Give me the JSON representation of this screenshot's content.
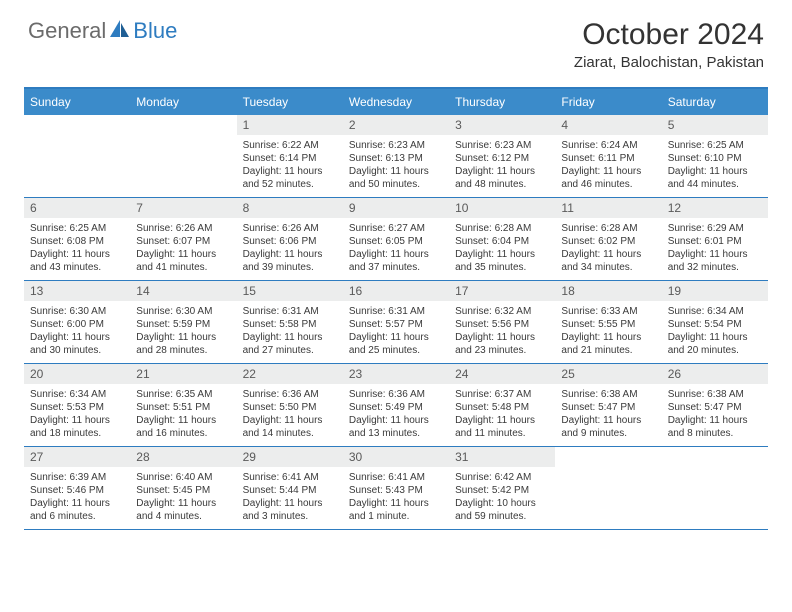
{
  "brand": {
    "part1": "General",
    "part2": "Blue"
  },
  "title": "October 2024",
  "location": "Ziarat, Balochistan, Pakistan",
  "colors": {
    "header_bg": "#3b8bca",
    "rule": "#2e7cc0",
    "daynum_bg": "#eceded",
    "text": "#333333"
  },
  "day_names": [
    "Sunday",
    "Monday",
    "Tuesday",
    "Wednesday",
    "Thursday",
    "Friday",
    "Saturday"
  ],
  "weeks": [
    [
      {
        "blank": true
      },
      {
        "blank": true
      },
      {
        "n": "1",
        "sunrise": "6:22 AM",
        "sunset": "6:14 PM",
        "daylight": "11 hours and 52 minutes."
      },
      {
        "n": "2",
        "sunrise": "6:23 AM",
        "sunset": "6:13 PM",
        "daylight": "11 hours and 50 minutes."
      },
      {
        "n": "3",
        "sunrise": "6:23 AM",
        "sunset": "6:12 PM",
        "daylight": "11 hours and 48 minutes."
      },
      {
        "n": "4",
        "sunrise": "6:24 AM",
        "sunset": "6:11 PM",
        "daylight": "11 hours and 46 minutes."
      },
      {
        "n": "5",
        "sunrise": "6:25 AM",
        "sunset": "6:10 PM",
        "daylight": "11 hours and 44 minutes."
      }
    ],
    [
      {
        "n": "6",
        "sunrise": "6:25 AM",
        "sunset": "6:08 PM",
        "daylight": "11 hours and 43 minutes."
      },
      {
        "n": "7",
        "sunrise": "6:26 AM",
        "sunset": "6:07 PM",
        "daylight": "11 hours and 41 minutes."
      },
      {
        "n": "8",
        "sunrise": "6:26 AM",
        "sunset": "6:06 PM",
        "daylight": "11 hours and 39 minutes."
      },
      {
        "n": "9",
        "sunrise": "6:27 AM",
        "sunset": "6:05 PM",
        "daylight": "11 hours and 37 minutes."
      },
      {
        "n": "10",
        "sunrise": "6:28 AM",
        "sunset": "6:04 PM",
        "daylight": "11 hours and 35 minutes."
      },
      {
        "n": "11",
        "sunrise": "6:28 AM",
        "sunset": "6:02 PM",
        "daylight": "11 hours and 34 minutes."
      },
      {
        "n": "12",
        "sunrise": "6:29 AM",
        "sunset": "6:01 PM",
        "daylight": "11 hours and 32 minutes."
      }
    ],
    [
      {
        "n": "13",
        "sunrise": "6:30 AM",
        "sunset": "6:00 PM",
        "daylight": "11 hours and 30 minutes."
      },
      {
        "n": "14",
        "sunrise": "6:30 AM",
        "sunset": "5:59 PM",
        "daylight": "11 hours and 28 minutes."
      },
      {
        "n": "15",
        "sunrise": "6:31 AM",
        "sunset": "5:58 PM",
        "daylight": "11 hours and 27 minutes."
      },
      {
        "n": "16",
        "sunrise": "6:31 AM",
        "sunset": "5:57 PM",
        "daylight": "11 hours and 25 minutes."
      },
      {
        "n": "17",
        "sunrise": "6:32 AM",
        "sunset": "5:56 PM",
        "daylight": "11 hours and 23 minutes."
      },
      {
        "n": "18",
        "sunrise": "6:33 AM",
        "sunset": "5:55 PM",
        "daylight": "11 hours and 21 minutes."
      },
      {
        "n": "19",
        "sunrise": "6:34 AM",
        "sunset": "5:54 PM",
        "daylight": "11 hours and 20 minutes."
      }
    ],
    [
      {
        "n": "20",
        "sunrise": "6:34 AM",
        "sunset": "5:53 PM",
        "daylight": "11 hours and 18 minutes."
      },
      {
        "n": "21",
        "sunrise": "6:35 AM",
        "sunset": "5:51 PM",
        "daylight": "11 hours and 16 minutes."
      },
      {
        "n": "22",
        "sunrise": "6:36 AM",
        "sunset": "5:50 PM",
        "daylight": "11 hours and 14 minutes."
      },
      {
        "n": "23",
        "sunrise": "6:36 AM",
        "sunset": "5:49 PM",
        "daylight": "11 hours and 13 minutes."
      },
      {
        "n": "24",
        "sunrise": "6:37 AM",
        "sunset": "5:48 PM",
        "daylight": "11 hours and 11 minutes."
      },
      {
        "n": "25",
        "sunrise": "6:38 AM",
        "sunset": "5:47 PM",
        "daylight": "11 hours and 9 minutes."
      },
      {
        "n": "26",
        "sunrise": "6:38 AM",
        "sunset": "5:47 PM",
        "daylight": "11 hours and 8 minutes."
      }
    ],
    [
      {
        "n": "27",
        "sunrise": "6:39 AM",
        "sunset": "5:46 PM",
        "daylight": "11 hours and 6 minutes."
      },
      {
        "n": "28",
        "sunrise": "6:40 AM",
        "sunset": "5:45 PM",
        "daylight": "11 hours and 4 minutes."
      },
      {
        "n": "29",
        "sunrise": "6:41 AM",
        "sunset": "5:44 PM",
        "daylight": "11 hours and 3 minutes."
      },
      {
        "n": "30",
        "sunrise": "6:41 AM",
        "sunset": "5:43 PM",
        "daylight": "11 hours and 1 minute."
      },
      {
        "n": "31",
        "sunrise": "6:42 AM",
        "sunset": "5:42 PM",
        "daylight": "10 hours and 59 minutes."
      },
      {
        "blank": true
      },
      {
        "blank": true
      }
    ]
  ],
  "labels": {
    "sunrise_prefix": "Sunrise: ",
    "sunset_prefix": "Sunset: ",
    "daylight_prefix": "Daylight: "
  }
}
